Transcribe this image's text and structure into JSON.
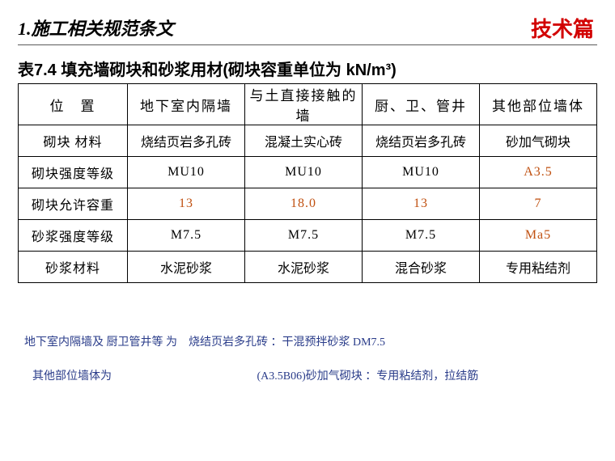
{
  "header": {
    "section_title": "1.施工相关规范条文",
    "corner_tag": "技术篇"
  },
  "table_caption": "表7.4 填充墙砌块和砂浆用材(砌块容重单位为 kN/m³)",
  "columns": [
    "位　置",
    "地下室内隔墙",
    "与土直接接触的墙",
    "厨、卫、管井",
    "其他部位墙体"
  ],
  "rows": [
    {
      "label": "砌块 材料",
      "cells": [
        "烧结页岩多孔砖",
        "混凝土实心砖",
        "烧结页岩多孔砖",
        "砂加气砌块"
      ],
      "hl": [
        false,
        false,
        false,
        false
      ],
      "latin": [
        false,
        false,
        false,
        false
      ]
    },
    {
      "label": "砌块强度等级",
      "cells": [
        "MU10",
        "MU10",
        "MU10",
        "A3.5"
      ],
      "hl": [
        false,
        false,
        false,
        true
      ],
      "latin": [
        true,
        true,
        true,
        true
      ]
    },
    {
      "label": "砌块允许容重",
      "cells": [
        "13",
        "18.0",
        "13",
        "7"
      ],
      "hl": [
        true,
        true,
        true,
        true
      ],
      "latin": [
        true,
        true,
        true,
        true
      ]
    },
    {
      "label": "砂浆强度等级",
      "cells": [
        "M7.5",
        "M7.5",
        "M7.5",
        "Ma5"
      ],
      "hl": [
        false,
        false,
        false,
        true
      ],
      "latin": [
        true,
        true,
        true,
        true
      ]
    },
    {
      "label": "砂浆材料",
      "cells": [
        "水泥砂浆",
        "水泥砂浆",
        "混合砂浆",
        "专用粘结剂"
      ],
      "hl": [
        false,
        false,
        false,
        false
      ],
      "latin": [
        false,
        false,
        false,
        false
      ]
    }
  ],
  "notes": {
    "line1": "地下室内隔墙及 厨卫管井等 为　烧结页岩多孔砖 ：干混预拌砂浆 DM7.5",
    "line2a": "其他部位墙体为",
    "line2b": "(A3.5B06)砂加气砌块 ：专用粘结剂，拉结筋"
  },
  "style": {
    "highlight_color": "#c05010",
    "note_color": "#2a3c8a",
    "corner_color": "#d20000",
    "border_color": "#000000"
  }
}
